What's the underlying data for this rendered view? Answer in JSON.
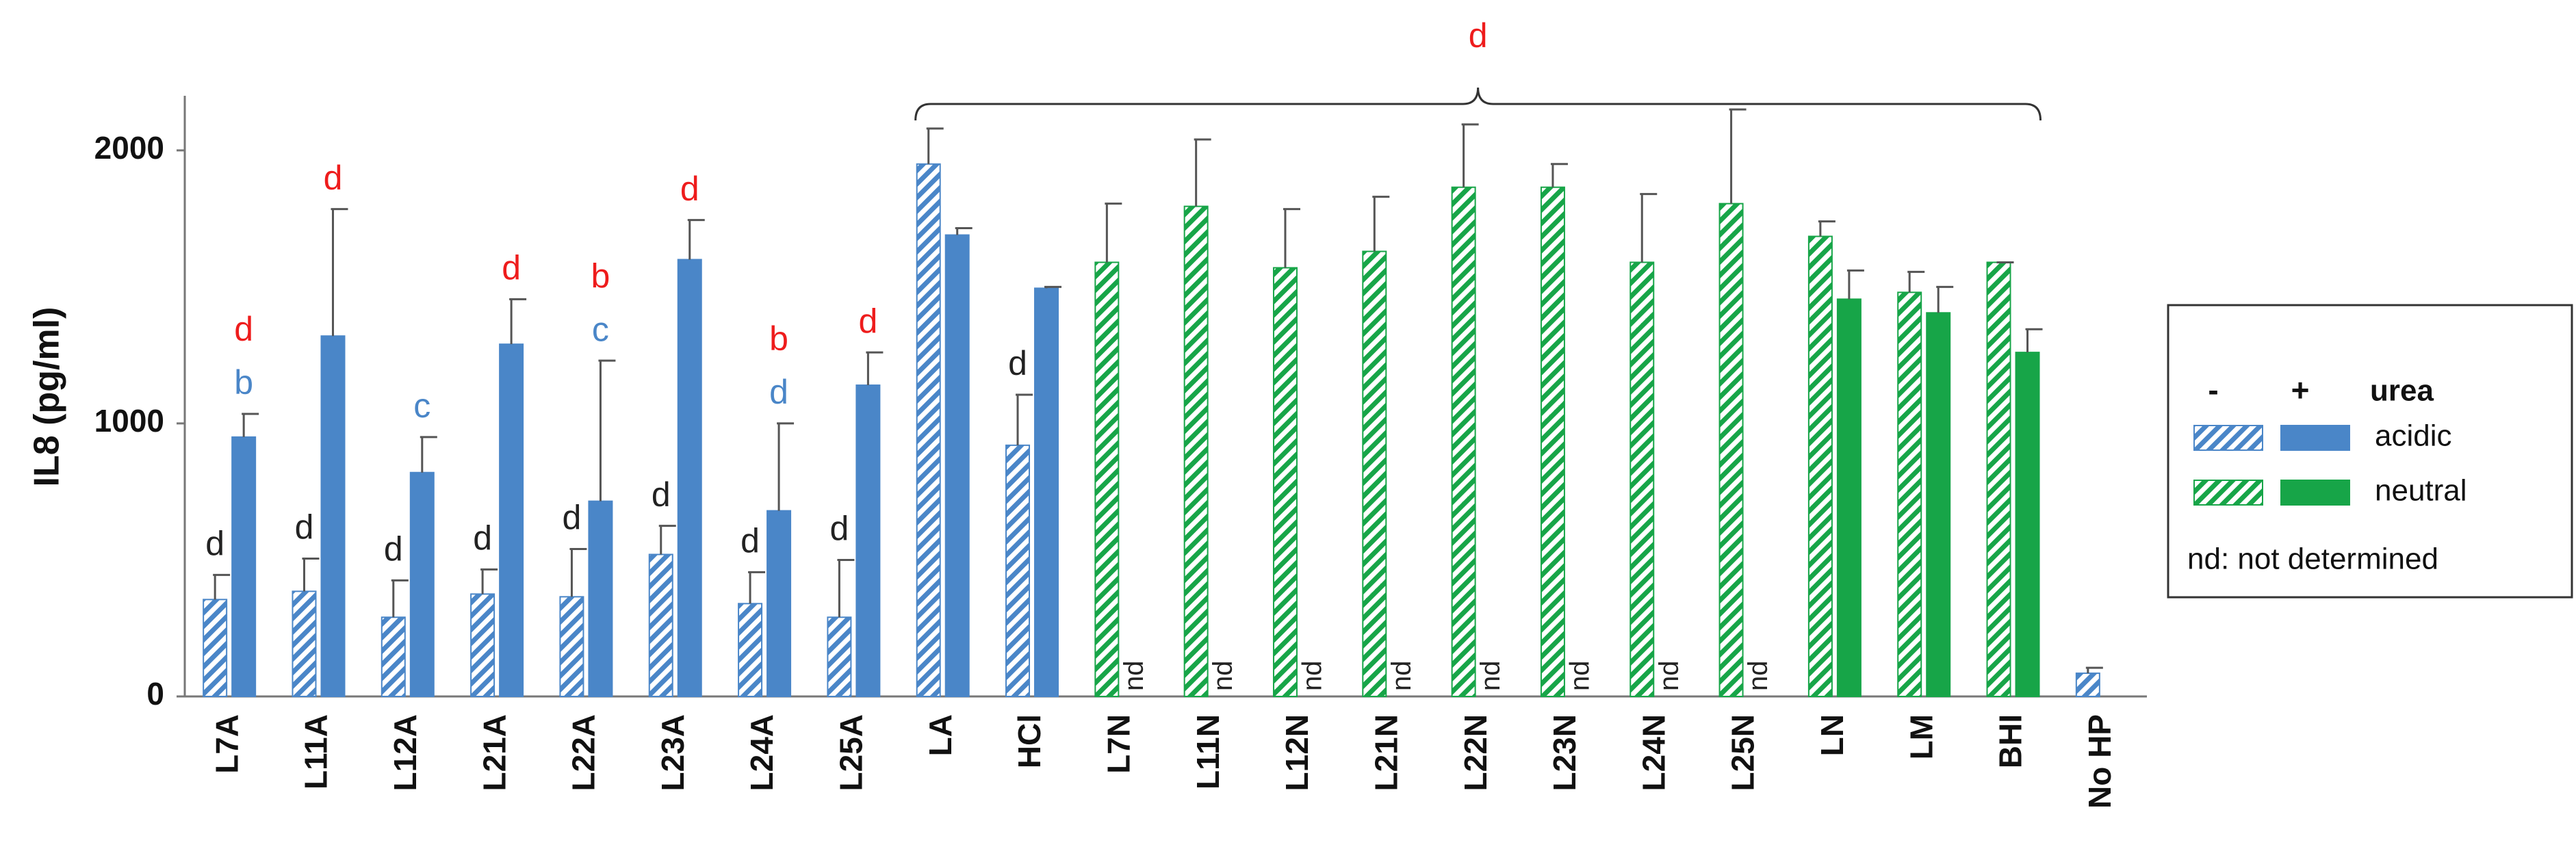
{
  "chart_data": {
    "type": "bar",
    "y_label": "IL8 (pg/ml)",
    "categories": [
      "L7A",
      "L11A",
      "L12A",
      "L21A",
      "L22A",
      "L23A",
      "L24A",
      "L25A",
      "LA",
      "HCl",
      "L7N",
      "L11N",
      "L12N",
      "L21N",
      "L22N",
      "L23N",
      "L24N",
      "L25N",
      "LN",
      "LM",
      "BHI",
      "No HP"
    ],
    "category_group": [
      "acidic",
      "acidic",
      "acidic",
      "acidic",
      "acidic",
      "acidic",
      "acidic",
      "acidic",
      "acidic",
      "acidic",
      "neutral",
      "neutral",
      "neutral",
      "neutral",
      "neutral",
      "neutral",
      "neutral",
      "neutral",
      "neutral",
      "neutral",
      "neutral",
      "acidic"
    ],
    "groups": [
      {
        "name": "acidic",
        "color": "#4a86c8"
      },
      {
        "name": "neutral",
        "color": "#17a548"
      }
    ],
    "legend_title": "urea",
    "legend_note": "nd: not determined",
    "series": [
      {
        "name": "-",
        "style": "hatched",
        "values": [
          355,
          385,
          290,
          375,
          365,
          520,
          340,
          290,
          1950,
          920,
          1590,
          1795,
          1570,
          1630,
          1865,
          1865,
          1590,
          1805,
          1685,
          1480,
          1590,
          85
        ],
        "errors": [
          90,
          120,
          135,
          90,
          175,
          105,
          115,
          210,
          130,
          185,
          215,
          245,
          215,
          200,
          230,
          85,
          250,
          345,
          55,
          75,
          0,
          20
        ]
      },
      {
        "name": "+",
        "style": "solid",
        "values": [
          950,
          1320,
          820,
          1290,
          715,
          1600,
          680,
          1140,
          1690,
          1495,
          null,
          null,
          null,
          null,
          null,
          null,
          null,
          null,
          1455,
          1405,
          1260,
          null
        ],
        "errors": [
          85,
          465,
          130,
          165,
          515,
          145,
          320,
          120,
          25,
          5,
          null,
          null,
          null,
          null,
          null,
          null,
          null,
          null,
          105,
          95,
          85,
          null
        ],
        "value_labels": [
          null,
          null,
          null,
          null,
          null,
          null,
          null,
          null,
          null,
          null,
          "nd",
          "nd",
          "nd",
          "nd",
          "nd",
          "nd",
          "nd",
          "nd",
          null,
          null,
          null,
          null
        ]
      }
    ],
    "ylim": [
      0,
      2200
    ],
    "yticks": [
      0,
      1000,
      2000
    ],
    "annotations": [
      {
        "category": "L7A",
        "series": "-",
        "labels": [
          {
            "text": "d",
            "color": "#222222"
          }
        ]
      },
      {
        "category": "L11A",
        "series": "-",
        "labels": [
          {
            "text": "d",
            "color": "#222222"
          }
        ]
      },
      {
        "category": "L12A",
        "series": "-",
        "labels": [
          {
            "text": "d",
            "color": "#222222"
          }
        ]
      },
      {
        "category": "L21A",
        "series": "-",
        "labels": [
          {
            "text": "d",
            "color": "#222222"
          }
        ]
      },
      {
        "category": "L22A",
        "series": "-",
        "labels": [
          {
            "text": "d",
            "color": "#222222"
          }
        ]
      },
      {
        "category": "L23A",
        "series": "-",
        "labels": [
          {
            "text": "d",
            "color": "#222222"
          }
        ]
      },
      {
        "category": "L24A",
        "series": "-",
        "labels": [
          {
            "text": "d",
            "color": "#222222"
          }
        ]
      },
      {
        "category": "L25A",
        "series": "-",
        "labels": [
          {
            "text": "d",
            "color": "#222222"
          }
        ]
      },
      {
        "category": "HCl",
        "series": "-",
        "labels": [
          {
            "text": "d",
            "color": "#222222"
          }
        ]
      },
      {
        "category": "L7A",
        "series": "+",
        "labels": [
          {
            "text": "b",
            "color": "#4a86c8"
          },
          {
            "text": "d",
            "color": "#ee1c1c"
          }
        ]
      },
      {
        "category": "L11A",
        "series": "+",
        "labels": [
          {
            "text": "d",
            "color": "#ee1c1c"
          }
        ]
      },
      {
        "category": "L12A",
        "series": "+",
        "labels": [
          {
            "text": "c",
            "color": "#4a86c8"
          }
        ]
      },
      {
        "category": "L21A",
        "series": "+",
        "labels": [
          {
            "text": "d",
            "color": "#ee1c1c"
          }
        ]
      },
      {
        "category": "L22A",
        "series": "+",
        "labels": [
          {
            "text": "c",
            "color": "#4a86c8"
          },
          {
            "text": "b",
            "color": "#ee1c1c"
          }
        ]
      },
      {
        "category": "L23A",
        "series": "+",
        "labels": [
          {
            "text": "d",
            "color": "#ee1c1c"
          }
        ]
      },
      {
        "category": "L24A",
        "series": "+",
        "labels": [
          {
            "text": "d",
            "color": "#4a86c8"
          },
          {
            "text": "b",
            "color": "#ee1c1c"
          }
        ]
      },
      {
        "category": "L25A",
        "series": "+",
        "labels": [
          {
            "text": "d",
            "color": "#ee1c1c"
          }
        ]
      }
    ],
    "bracket": {
      "from": "LA",
      "to": "BHI",
      "text": "d",
      "color": "#ee1c1c"
    }
  }
}
